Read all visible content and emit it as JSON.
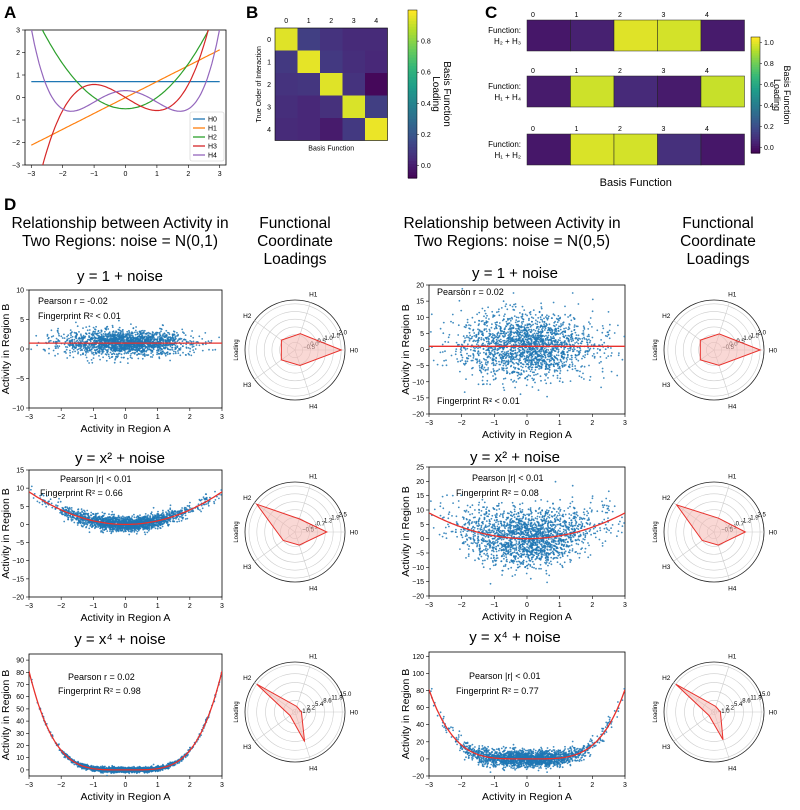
{
  "panel_labels": {
    "a": "A",
    "b": "B",
    "c": "C",
    "d": "D"
  },
  "column_headers": {
    "rel_left": [
      "Relationship between Activity in",
      "Two Regions: noise = N(0,1)"
    ],
    "fc_left": [
      "Functional",
      "Coordinate",
      "Loadings"
    ],
    "rel_right": [
      "Relationship between Activity in",
      "Two Regions: noise = N(0,5)"
    ],
    "fc_right": [
      "Functional",
      "Coordinate",
      "Loadings"
    ]
  },
  "row_titles": [
    "y = 1 + noise",
    "y = x² + noise",
    "y = x⁴ + noise"
  ],
  "colors": {
    "h0": "#1f77b4",
    "h1": "#ff7f0e",
    "h2": "#2ca02c",
    "h3": "#d62728",
    "h4": "#9467bd",
    "scatter": "#1f77b4",
    "fit": "#e8312c",
    "fill": "#f4b8b3"
  },
  "chart_data": [
    {
      "id": "A",
      "type": "line",
      "title": "",
      "x_ticks": [
        -3,
        -2,
        -1,
        0,
        1,
        2,
        3
      ],
      "y_ticks": [
        -3,
        -2,
        -1,
        0,
        1,
        2,
        3
      ],
      "xlim": [
        -3.2,
        3.2
      ],
      "ylim": [
        -3,
        3
      ],
      "legend": [
        "H0",
        "H1",
        "H2",
        "H3",
        "H4"
      ],
      "legend_loc": "lower-right",
      "series": [
        {
          "name": "H0",
          "formula": "0.707"
        },
        {
          "name": "H1",
          "formula": "0.707*x"
        },
        {
          "name": "H2",
          "formula": "0.5*(x^2-1)"
        },
        {
          "name": "H3",
          "formula": "0.289*(x^3-3x)"
        },
        {
          "name": "H4",
          "formula": "0.102*(x^4-6x^2+3)"
        }
      ]
    },
    {
      "id": "B",
      "type": "heatmap",
      "x_ticks": [
        "0",
        "1",
        "2",
        "3",
        "4"
      ],
      "y_ticks": [
        "0",
        "1",
        "2",
        "3",
        "4"
      ],
      "xlabel": "Basis Function",
      "ylabel": "True Order of Interaction",
      "colorbar_label": "Basis Function Loading",
      "colorbar_ticks": [
        "0.0",
        "0.2",
        "0.4",
        "0.6",
        "0.8"
      ],
      "colorbar_range": [
        -0.08,
        1.0
      ],
      "values": [
        [
          0.95,
          0.12,
          0.08,
          0.05,
          0.05
        ],
        [
          0.1,
          0.96,
          0.1,
          0.06,
          0.04
        ],
        [
          0.08,
          0.09,
          0.95,
          0.08,
          -0.06
        ],
        [
          0.06,
          0.04,
          0.07,
          0.94,
          0.12
        ],
        [
          0.05,
          0.04,
          0.0,
          0.1,
          0.97
        ]
      ]
    },
    {
      "id": "C",
      "type": "heatmap",
      "x_ticks": [
        "0",
        "1",
        "2",
        "3",
        "4"
      ],
      "row_labels": [
        [
          "Function:",
          "H₂ + H₃"
        ],
        [
          "Function:",
          "H₁ + H₄"
        ],
        [
          "Function:",
          "H₁ + H₂"
        ]
      ],
      "xlabel": "Basis Function",
      "colorbar_label": "Basis Function Loading",
      "colorbar_ticks": [
        "0.0",
        "0.2",
        "0.4",
        "0.6",
        "0.8",
        "1.0"
      ],
      "colorbar_range": [
        -0.05,
        1.05
      ],
      "values": [
        [
          0.02,
          0.05,
          1.0,
          0.98,
          0.03
        ],
        [
          0.03,
          0.97,
          0.08,
          0.03,
          0.96
        ],
        [
          0.02,
          0.99,
          0.98,
          0.1,
          0.02
        ]
      ]
    },
    {
      "id": "D",
      "type": "scatter",
      "xlabel": "Activity in Region A",
      "ylabel": "Activity in Region B",
      "x_ticks": [
        -3,
        -2,
        -1,
        0,
        1,
        2,
        3
      ],
      "rows": [
        {
          "title": "y = 1 + noise",
          "left": {
            "noise_sd": 1,
            "ylim": [
              -10,
              10
            ],
            "y_ticks": [
              -10,
              -5,
              0,
              5,
              10
            ],
            "n_points": 2000,
            "annotations": [
              "Pearson r = -0.02",
              "Fingerprint R² <  0.01"
            ],
            "fit": "const"
          },
          "left_polar": {
            "loadings": [
              2.0,
              0.12,
              0.09,
              0.1,
              0.06
            ],
            "rlim": [
              -1.0,
              2.25
            ],
            "r_ticks": [
              "-0.5",
              "0.0",
              "0.5",
              "1.0",
              "1.5",
              "2.0"
            ]
          },
          "right": {
            "noise_sd": 5,
            "ylim": [
              -20,
              20
            ],
            "y_ticks": [
              -20,
              -15,
              -10,
              -5,
              0,
              5,
              10,
              15,
              20
            ],
            "n_points": 2000,
            "annotations": [
              "Pearson r = 0.02",
              "Fingerprint  R² <  0.01"
            ],
            "fit": "const"
          },
          "right_polar": {
            "loadings": [
              2.0,
              0.1,
              0.1,
              0.1,
              0.05
            ],
            "rlim": [
              -1.0,
              2.25
            ],
            "r_ticks": [
              "-0.5",
              "0.0",
              "0.5",
              "1.0",
              "1.5",
              "2.0"
            ]
          }
        },
        {
          "title": "y = x² + noise",
          "left": {
            "noise_sd": 1,
            "ylim": [
              -20,
              15
            ],
            "y_ticks": [
              -20,
              -15,
              -10,
              -5,
              0,
              5,
              10,
              15
            ],
            "n_points": 2000,
            "annotations": [
              "Pearson |r| < 0.01",
              "Fingerprint  R² =  0.66"
            ],
            "fit": "x2"
          },
          "left_polar": {
            "loadings": [
              1.42,
              0.05,
              2.6,
              0.1,
              0.05
            ],
            "rlim": [
              -1.0,
              2.8
            ],
            "r_ticks": [
              "-0.5",
              "0.1",
              "0.7",
              "1.3",
              "1.9",
              "2.5"
            ]
          },
          "right": {
            "noise_sd": 5,
            "ylim": [
              -20,
              25
            ],
            "y_ticks": [
              -20,
              -15,
              -10,
              -5,
              0,
              5,
              10,
              15,
              20,
              25
            ],
            "n_points": 2000,
            "annotations": [
              "Pearson |r| < 0.01",
              "Fingerprint  R² =  0.08"
            ],
            "fit": "x2"
          },
          "right_polar": {
            "loadings": [
              1.38,
              0.1,
              2.5,
              0.1,
              0.05
            ],
            "rlim": [
              -1.0,
              2.8
            ],
            "r_ticks": [
              "-0.5",
              "0.1",
              "0.7",
              "1.3",
              "1.9",
              "2.5"
            ]
          }
        },
        {
          "title": "y = x⁴ + noise",
          "left": {
            "noise_sd": 1,
            "ylim": [
              -5,
              95
            ],
            "y_ticks": [
              0,
              10,
              20,
              30,
              40,
              50,
              60,
              70,
              80,
              90
            ],
            "n_points": 2000,
            "annotations": [
              "Pearson r = 0.02",
              "Fingerprint  R² =  0.98"
            ],
            "fit": "x4"
          },
          "left_polar": {
            "loadings": [
              0.3,
              0.1,
              15.0,
              0.2,
              9.2
            ],
            "rlim": [
              -2.0,
              16.0
            ],
            "r_ticks": [
              "-1.0",
              "2.2",
              "5.4",
              "8.6",
              "11.8",
              "15.0"
            ]
          },
          "right": {
            "noise_sd": 5,
            "ylim": [
              -20,
              125
            ],
            "y_ticks": [
              -20,
              0,
              20,
              40,
              60,
              80,
              100,
              120
            ],
            "n_points": 2000,
            "annotations": [
              "Pearson |r| < 0.01",
              "Fingerprint  R² =  0.77"
            ],
            "fit": "x4"
          },
          "right_polar": {
            "loadings": [
              0.3,
              0.1,
              15.0,
              0.2,
              8.5
            ],
            "rlim": [
              -2.0,
              16.0
            ],
            "r_ticks": [
              "-1.0",
              "2.2",
              "5.4",
              "8.6",
              "11.8",
              "15.0"
            ]
          }
        }
      ],
      "polar_labels": [
        "H0",
        "H1",
        "H2",
        "H3",
        "H4"
      ],
      "polar_axis_label": "Loading"
    }
  ]
}
